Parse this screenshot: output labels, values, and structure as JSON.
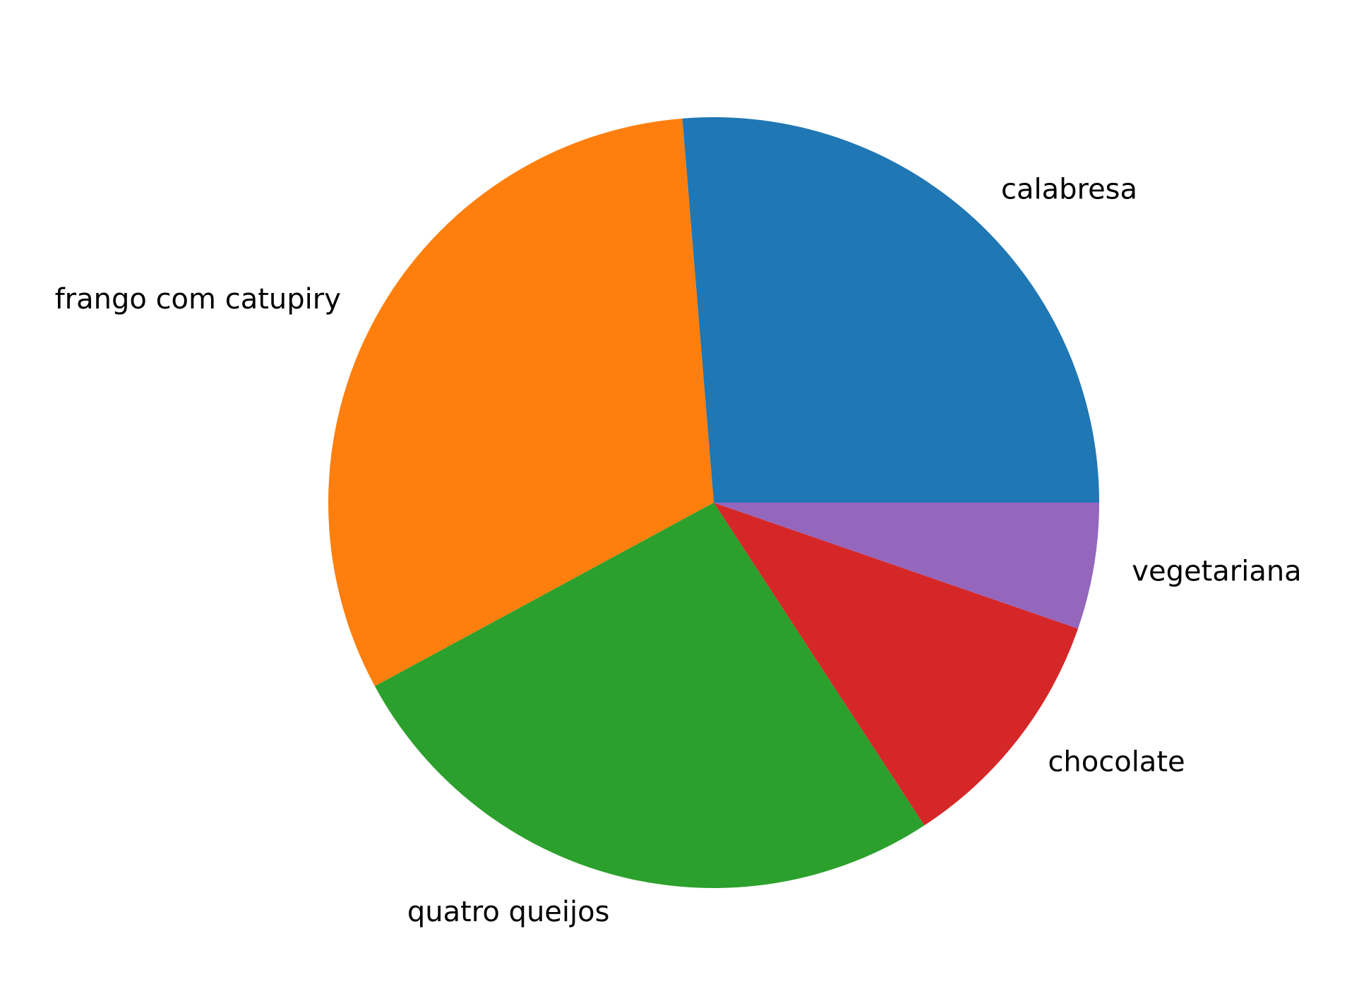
{
  "chart_data": {
    "type": "pie",
    "title": "",
    "start_angle_deg": 0,
    "direction": "counterclockwise",
    "slices": [
      {
        "label": "calabresa",
        "value": 26.3,
        "color": "#1f77b4"
      },
      {
        "label": "frango com catupiry",
        "value": 31.6,
        "color": "#ff7f0e"
      },
      {
        "label": "quatro queijos",
        "value": 26.3,
        "color": "#2ca02c"
      },
      {
        "label": "chocolate",
        "value": 10.5,
        "color": "#d62728"
      },
      {
        "label": "vegetariana",
        "value": 5.3,
        "color": "#9467bd"
      }
    ],
    "legend": "none"
  }
}
